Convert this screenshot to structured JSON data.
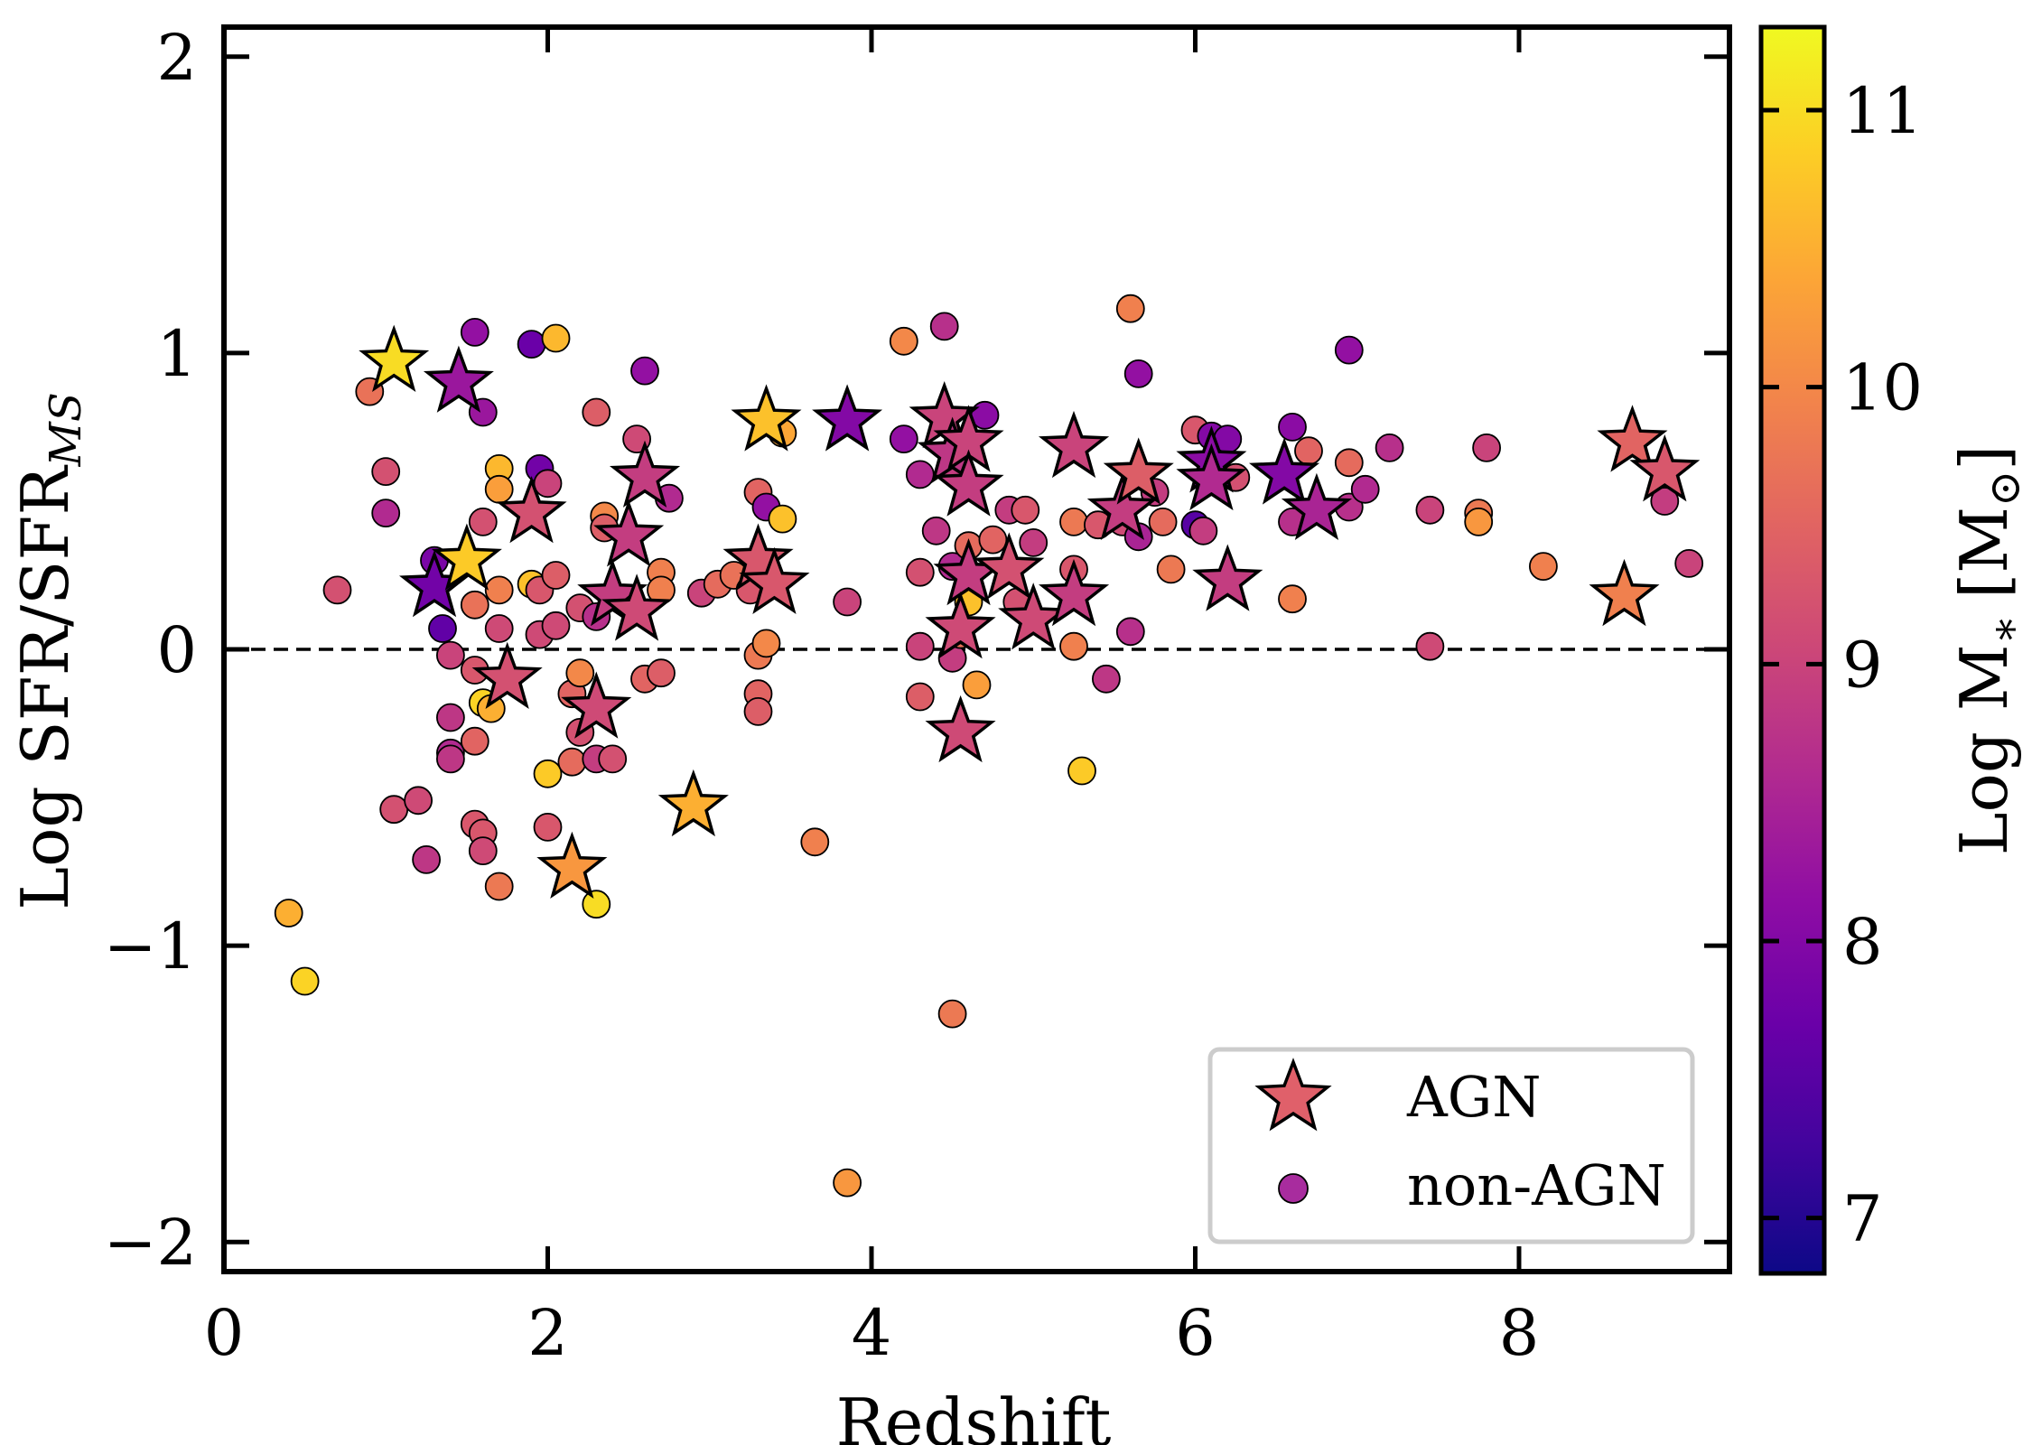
{
  "chart_data": {
    "type": "scatter",
    "xlabel": "Redshift",
    "ylabel": "Log SFR/SFR",
    "ylabel_sub": "MS",
    "xlim": [
      0,
      9.3
    ],
    "ylim": [
      -2.1,
      2.1
    ],
    "x_ticks": [
      0,
      2,
      4,
      6,
      8
    ],
    "x_tick_labels": [
      "0",
      "2",
      "4",
      "6",
      "8"
    ],
    "y_ticks": [
      2,
      1,
      0,
      -1,
      -2
    ],
    "y_tick_labels": [
      "2",
      "1",
      "0",
      "−1",
      "−2"
    ],
    "reference_line": {
      "y": 0,
      "style": "dashed"
    },
    "colorbar": {
      "label": "Log M",
      "label_sub": "∗",
      "label_unit": "[M",
      "label_unit_sub": "⊙",
      "label_unit_close": "]",
      "range": [
        6.8,
        11.3
      ],
      "ticks": [
        11,
        10,
        9,
        8,
        7
      ],
      "tick_labels": [
        "11",
        "10",
        "9",
        "8",
        "7"
      ],
      "colormap": "plasma"
    },
    "legend": {
      "placement": "lower right",
      "entries": [
        {
          "label": "AGN",
          "marker": "star",
          "color": "#e0606a"
        },
        {
          "label": "non-AGN",
          "marker": "circle",
          "color": "#a82c9e"
        }
      ]
    },
    "series": [
      {
        "name": "AGN",
        "marker": "star",
        "points": [
          {
            "x": 1.05,
            "y": 0.97,
            "m": 11.0
          },
          {
            "x": 1.45,
            "y": 0.9,
            "m": 8.3
          },
          {
            "x": 1.3,
            "y": 0.21,
            "m": 7.8
          },
          {
            "x": 1.5,
            "y": 0.3,
            "m": 10.8
          },
          {
            "x": 1.9,
            "y": 0.46,
            "m": 9.2
          },
          {
            "x": 1.75,
            "y": -0.1,
            "m": 9.2
          },
          {
            "x": 2.3,
            "y": -0.2,
            "m": 9.1
          },
          {
            "x": 2.15,
            "y": -0.74,
            "m": 10.2
          },
          {
            "x": 2.4,
            "y": 0.18,
            "m": 8.9
          },
          {
            "x": 2.5,
            "y": 0.38,
            "m": 8.9
          },
          {
            "x": 2.55,
            "y": 0.13,
            "m": 9.1
          },
          {
            "x": 2.6,
            "y": 0.58,
            "m": 8.9
          },
          {
            "x": 2.9,
            "y": -0.53,
            "m": 10.5
          },
          {
            "x": 3.35,
            "y": 0.77,
            "m": 10.7
          },
          {
            "x": 3.3,
            "y": 0.3,
            "m": 9.3
          },
          {
            "x": 3.4,
            "y": 0.22,
            "m": 9.3
          },
          {
            "x": 3.85,
            "y": 0.77,
            "m": 8.0
          },
          {
            "x": 4.45,
            "y": 0.78,
            "m": 9.0
          },
          {
            "x": 4.5,
            "y": 0.66,
            "m": 8.8
          },
          {
            "x": 4.6,
            "y": 0.7,
            "m": 9.0
          },
          {
            "x": 4.6,
            "y": 0.55,
            "m": 8.9
          },
          {
            "x": 4.6,
            "y": 0.25,
            "m": 8.9
          },
          {
            "x": 4.55,
            "y": 0.07,
            "m": 9.1
          },
          {
            "x": 4.55,
            "y": -0.28,
            "m": 9.1
          },
          {
            "x": 4.85,
            "y": 0.27,
            "m": 9.2
          },
          {
            "x": 5.0,
            "y": 0.1,
            "m": 9.1
          },
          {
            "x": 5.25,
            "y": 0.68,
            "m": 9.0
          },
          {
            "x": 5.25,
            "y": 0.18,
            "m": 8.9
          },
          {
            "x": 5.55,
            "y": 0.47,
            "m": 8.9
          },
          {
            "x": 5.65,
            "y": 0.59,
            "m": 9.4
          },
          {
            "x": 6.1,
            "y": 0.63,
            "m": 8.1
          },
          {
            "x": 6.1,
            "y": 0.57,
            "m": 8.6
          },
          {
            "x": 6.2,
            "y": 0.23,
            "m": 8.9
          },
          {
            "x": 6.55,
            "y": 0.59,
            "m": 8.0
          },
          {
            "x": 6.75,
            "y": 0.47,
            "m": 8.5
          },
          {
            "x": 8.65,
            "y": 0.18,
            "m": 9.9
          },
          {
            "x": 8.7,
            "y": 0.7,
            "m": 9.5
          },
          {
            "x": 8.9,
            "y": 0.6,
            "m": 9.3
          }
        ]
      },
      {
        "name": "non-AGN",
        "marker": "circle",
        "points": [
          {
            "x": 0.4,
            "y": -0.89,
            "m": 10.5
          },
          {
            "x": 0.5,
            "y": -1.12,
            "m": 10.9
          },
          {
            "x": 0.7,
            "y": 0.2,
            "m": 9.2
          },
          {
            "x": 0.9,
            "y": 0.87,
            "m": 9.7
          },
          {
            "x": 1.0,
            "y": 0.6,
            "m": 9.2
          },
          {
            "x": 1.0,
            "y": 0.46,
            "m": 8.6
          },
          {
            "x": 1.05,
            "y": -0.54,
            "m": 9.2
          },
          {
            "x": 1.2,
            "y": -0.51,
            "m": 9.1
          },
          {
            "x": 1.25,
            "y": -0.71,
            "m": 8.8
          },
          {
            "x": 1.3,
            "y": 0.3,
            "m": 7.9
          },
          {
            "x": 1.35,
            "y": 0.07,
            "m": 7.6
          },
          {
            "x": 1.4,
            "y": -0.02,
            "m": 9.0
          },
          {
            "x": 1.4,
            "y": -0.23,
            "m": 8.8
          },
          {
            "x": 1.4,
            "y": -0.35,
            "m": 8.6
          },
          {
            "x": 1.4,
            "y": -0.37,
            "m": 8.8
          },
          {
            "x": 1.55,
            "y": 1.07,
            "m": 8.2
          },
          {
            "x": 1.6,
            "y": 0.8,
            "m": 8.3
          },
          {
            "x": 1.6,
            "y": 0.43,
            "m": 9.2
          },
          {
            "x": 1.55,
            "y": 0.15,
            "m": 9.7
          },
          {
            "x": 1.55,
            "y": -0.07,
            "m": 9.3
          },
          {
            "x": 1.6,
            "y": -0.18,
            "m": 10.9
          },
          {
            "x": 1.65,
            "y": -0.2,
            "m": 10.5
          },
          {
            "x": 1.55,
            "y": -0.31,
            "m": 9.5
          },
          {
            "x": 1.55,
            "y": -0.59,
            "m": 9.3
          },
          {
            "x": 1.6,
            "y": -0.62,
            "m": 9.3
          },
          {
            "x": 1.6,
            "y": -0.68,
            "m": 9.1
          },
          {
            "x": 1.7,
            "y": -0.8,
            "m": 9.8
          },
          {
            "x": 1.7,
            "y": 0.61,
            "m": 10.6
          },
          {
            "x": 1.7,
            "y": 0.54,
            "m": 10.3
          },
          {
            "x": 1.7,
            "y": 0.2,
            "m": 9.9
          },
          {
            "x": 1.7,
            "y": 0.07,
            "m": 9.1
          },
          {
            "x": 1.9,
            "y": 1.03,
            "m": 7.7
          },
          {
            "x": 1.95,
            "y": 0.61,
            "m": 7.8
          },
          {
            "x": 1.9,
            "y": 0.22,
            "m": 10.7
          },
          {
            "x": 1.95,
            "y": 0.2,
            "m": 9.3
          },
          {
            "x": 1.95,
            "y": 0.05,
            "m": 9.1
          },
          {
            "x": 2.0,
            "y": 0.56,
            "m": 9.0
          },
          {
            "x": 2.0,
            "y": -0.42,
            "m": 10.8
          },
          {
            "x": 2.0,
            "y": -0.6,
            "m": 9.3
          },
          {
            "x": 2.05,
            "y": 1.05,
            "m": 10.6
          },
          {
            "x": 2.05,
            "y": 0.25,
            "m": 9.4
          },
          {
            "x": 2.05,
            "y": 0.08,
            "m": 9.1
          },
          {
            "x": 2.15,
            "y": -0.15,
            "m": 9.5
          },
          {
            "x": 2.15,
            "y": -0.38,
            "m": 9.6
          },
          {
            "x": 2.2,
            "y": 0.14,
            "m": 9.2
          },
          {
            "x": 2.2,
            "y": -0.08,
            "m": 10.0
          },
          {
            "x": 2.2,
            "y": -0.28,
            "m": 9.2
          },
          {
            "x": 2.3,
            "y": 0.8,
            "m": 9.4
          },
          {
            "x": 2.3,
            "y": 0.11,
            "m": 8.7
          },
          {
            "x": 2.3,
            "y": -0.37,
            "m": 8.9
          },
          {
            "x": 2.3,
            "y": -0.86,
            "m": 11.0
          },
          {
            "x": 2.35,
            "y": 0.45,
            "m": 10.0
          },
          {
            "x": 2.35,
            "y": 0.41,
            "m": 9.4
          },
          {
            "x": 2.4,
            "y": -0.37,
            "m": 9.2
          },
          {
            "x": 2.6,
            "y": 0.94,
            "m": 8.2
          },
          {
            "x": 2.55,
            "y": 0.71,
            "m": 9.1
          },
          {
            "x": 2.6,
            "y": -0.1,
            "m": 9.5
          },
          {
            "x": 2.7,
            "y": 0.26,
            "m": 9.9
          },
          {
            "x": 2.7,
            "y": 0.2,
            "m": 9.9
          },
          {
            "x": 2.7,
            "y": -0.08,
            "m": 9.4
          },
          {
            "x": 2.75,
            "y": 0.51,
            "m": 8.6
          },
          {
            "x": 2.95,
            "y": 0.19,
            "m": 9.0
          },
          {
            "x": 3.05,
            "y": 0.22,
            "m": 9.6
          },
          {
            "x": 3.15,
            "y": 0.25,
            "m": 9.7
          },
          {
            "x": 3.25,
            "y": 0.2,
            "m": 9.3
          },
          {
            "x": 3.3,
            "y": 0.53,
            "m": 9.5
          },
          {
            "x": 3.35,
            "y": 0.48,
            "m": 8.2
          },
          {
            "x": 3.3,
            "y": -0.02,
            "m": 9.8
          },
          {
            "x": 3.35,
            "y": 0.02,
            "m": 10.0
          },
          {
            "x": 3.3,
            "y": -0.15,
            "m": 9.5
          },
          {
            "x": 3.3,
            "y": -0.21,
            "m": 9.4
          },
          {
            "x": 3.45,
            "y": 0.44,
            "m": 10.7
          },
          {
            "x": 3.45,
            "y": 0.73,
            "m": 10.4
          },
          {
            "x": 3.65,
            "y": -0.65,
            "m": 9.9
          },
          {
            "x": 3.85,
            "y": 0.16,
            "m": 9.0
          },
          {
            "x": 3.85,
            "y": -1.8,
            "m": 10.2
          },
          {
            "x": 4.2,
            "y": 1.04,
            "m": 10.0
          },
          {
            "x": 4.2,
            "y": 0.71,
            "m": 8.2
          },
          {
            "x": 4.3,
            "y": 0.59,
            "m": 8.6
          },
          {
            "x": 4.3,
            "y": 0.26,
            "m": 9.2
          },
          {
            "x": 4.3,
            "y": 0.01,
            "m": 9.0
          },
          {
            "x": 4.3,
            "y": -0.16,
            "m": 9.4
          },
          {
            "x": 4.4,
            "y": 0.4,
            "m": 8.8
          },
          {
            "x": 4.45,
            "y": 1.09,
            "m": 8.7
          },
          {
            "x": 4.5,
            "y": 0.6,
            "m": 8.9
          },
          {
            "x": 4.5,
            "y": 0.28,
            "m": 8.6
          },
          {
            "x": 4.5,
            "y": -0.03,
            "m": 8.9
          },
          {
            "x": 4.5,
            "y": -1.23,
            "m": 9.8
          },
          {
            "x": 4.55,
            "y": 0.05,
            "m": 9.7
          },
          {
            "x": 4.6,
            "y": 0.16,
            "m": 10.7
          },
          {
            "x": 4.6,
            "y": 0.35,
            "m": 9.6
          },
          {
            "x": 4.65,
            "y": -0.12,
            "m": 10.3
          },
          {
            "x": 4.7,
            "y": 0.79,
            "m": 8.1
          },
          {
            "x": 4.75,
            "y": 0.37,
            "m": 9.5
          },
          {
            "x": 4.85,
            "y": 0.47,
            "m": 8.9
          },
          {
            "x": 4.9,
            "y": 0.16,
            "m": 9.2
          },
          {
            "x": 4.95,
            "y": 0.47,
            "m": 9.3
          },
          {
            "x": 5.0,
            "y": 0.36,
            "m": 8.9
          },
          {
            "x": 5.25,
            "y": 0.43,
            "m": 9.8
          },
          {
            "x": 5.25,
            "y": 0.27,
            "m": 9.3
          },
          {
            "x": 5.25,
            "y": 0.01,
            "m": 9.9
          },
          {
            "x": 5.3,
            "y": -0.41,
            "m": 10.8
          },
          {
            "x": 5.4,
            "y": 0.42,
            "m": 9.3
          },
          {
            "x": 5.45,
            "y": -0.1,
            "m": 8.8
          },
          {
            "x": 5.55,
            "y": 0.43,
            "m": 9.1
          },
          {
            "x": 5.6,
            "y": 1.15,
            "m": 9.9
          },
          {
            "x": 5.6,
            "y": 0.06,
            "m": 8.7
          },
          {
            "x": 5.65,
            "y": 0.38,
            "m": 8.5
          },
          {
            "x": 5.65,
            "y": 0.93,
            "m": 8.2
          },
          {
            "x": 5.75,
            "y": 0.53,
            "m": 8.9
          },
          {
            "x": 5.8,
            "y": 0.43,
            "m": 9.6
          },
          {
            "x": 5.85,
            "y": 0.27,
            "m": 9.8
          },
          {
            "x": 6.0,
            "y": 0.74,
            "m": 9.3
          },
          {
            "x": 6.0,
            "y": 0.42,
            "m": 7.5
          },
          {
            "x": 6.05,
            "y": 0.4,
            "m": 8.9
          },
          {
            "x": 6.1,
            "y": 0.72,
            "m": 8.0
          },
          {
            "x": 6.2,
            "y": 0.71,
            "m": 8.0
          },
          {
            "x": 6.25,
            "y": 0.58,
            "m": 9.2
          },
          {
            "x": 6.6,
            "y": 0.75,
            "m": 8.1
          },
          {
            "x": 6.6,
            "y": 0.17,
            "m": 9.9
          },
          {
            "x": 6.6,
            "y": 0.43,
            "m": 8.7
          },
          {
            "x": 6.7,
            "y": 0.67,
            "m": 9.5
          },
          {
            "x": 6.95,
            "y": 1.01,
            "m": 8.2
          },
          {
            "x": 6.95,
            "y": 0.63,
            "m": 9.6
          },
          {
            "x": 6.95,
            "y": 0.48,
            "m": 8.7
          },
          {
            "x": 7.05,
            "y": 0.54,
            "m": 8.6
          },
          {
            "x": 7.2,
            "y": 0.68,
            "m": 8.7
          },
          {
            "x": 7.45,
            "y": 0.47,
            "m": 9.0
          },
          {
            "x": 7.45,
            "y": 0.01,
            "m": 9.1
          },
          {
            "x": 7.75,
            "y": 0.46,
            "m": 9.8
          },
          {
            "x": 7.75,
            "y": 0.43,
            "m": 10.2
          },
          {
            "x": 7.8,
            "y": 0.68,
            "m": 9.0
          },
          {
            "x": 8.15,
            "y": 0.28,
            "m": 9.9
          },
          {
            "x": 8.9,
            "y": 0.5,
            "m": 8.9
          },
          {
            "x": 9.05,
            "y": 0.29,
            "m": 9.0
          }
        ]
      }
    ]
  }
}
